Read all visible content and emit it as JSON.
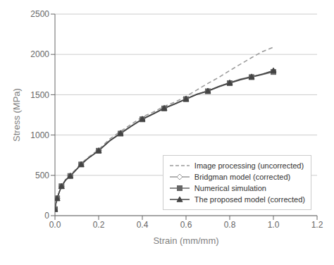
{
  "chart_data": {
    "type": "line",
    "xlabel": "Strain (mm/mm)",
    "ylabel": "Stress (MPa)",
    "xlim": [
      0,
      1.2
    ],
    "ylim": [
      0,
      2500
    ],
    "xticks": [
      {
        "value": 0,
        "label": "0.0"
      },
      0.2,
      0.4,
      0.6,
      0.8,
      {
        "value": 1.0,
        "label": "1.0"
      },
      1.2
    ],
    "yticks": [
      0,
      500,
      1000,
      1500,
      2000,
      2500
    ],
    "grid": "y",
    "legend": "lower right",
    "x": [
      0.0,
      0.005,
      0.01,
      0.02,
      0.03,
      0.05,
      0.07,
      0.09,
      0.12,
      0.15,
      0.2,
      0.25,
      0.3,
      0.35,
      0.4,
      0.45,
      0.5,
      0.55,
      0.6,
      0.65,
      0.7,
      0.75,
      0.8,
      0.85,
      0.9,
      0.95,
      1.0
    ],
    "series": [
      {
        "name": "Image processing (uncorrected)",
        "color": "#999999",
        "line_style": "dashed",
        "values": [
          80,
          160,
          215,
          300,
          370,
          455,
          505,
          560,
          648,
          720,
          820,
          950,
          1045,
          1135,
          1225,
          1285,
          1355,
          1410,
          1480,
          1560,
          1640,
          1715,
          1800,
          1880,
          1960,
          2035,
          2090
        ]
      },
      {
        "name": "Bridgman model (corrected)",
        "color": "#999999",
        "line_style": "solid",
        "marker": "open_diamond",
        "marker_x": [
          0.0,
          0.01,
          0.03,
          0.07,
          0.12,
          0.2,
          0.3,
          0.4,
          0.5,
          0.6,
          0.7,
          0.8,
          0.9,
          1.0
        ],
        "values": [
          80,
          160,
          215,
          295,
          365,
          445,
          495,
          550,
          638,
          710,
          808,
          930,
          1025,
          1115,
          1200,
          1265,
          1335,
          1390,
          1450,
          1508,
          1548,
          1605,
          1650,
          1695,
          1725,
          1758,
          1790
        ]
      },
      {
        "name": "Numerical simulation",
        "color": "#666666",
        "line_style": "solid",
        "marker": "square",
        "marker_x": [
          0.0,
          0.01,
          0.03,
          0.07,
          0.12,
          0.2,
          0.3,
          0.4,
          0.5,
          0.6,
          0.7,
          0.8,
          0.9,
          1.0
        ],
        "values": [
          80,
          160,
          215,
          295,
          365,
          445,
          492,
          547,
          635,
          707,
          805,
          925,
          1018,
          1108,
          1195,
          1260,
          1330,
          1385,
          1445,
          1503,
          1543,
          1598,
          1643,
          1685,
          1718,
          1750,
          1782
        ]
      },
      {
        "name": "The proposed model (corrected)",
        "color": "#444444",
        "line_style": "solid",
        "marker": "triangle",
        "marker_x": [
          0.0,
          0.01,
          0.03,
          0.07,
          0.12,
          0.2,
          0.3,
          0.4,
          0.5,
          0.6,
          0.7,
          0.8,
          0.9,
          1.0
        ],
        "values": [
          80,
          160,
          215,
          295,
          365,
          445,
          493,
          548,
          636,
          708,
          806,
          928,
          1022,
          1112,
          1198,
          1263,
          1333,
          1388,
          1448,
          1506,
          1547,
          1602,
          1648,
          1690,
          1722,
          1755,
          1800
        ]
      }
    ]
  }
}
